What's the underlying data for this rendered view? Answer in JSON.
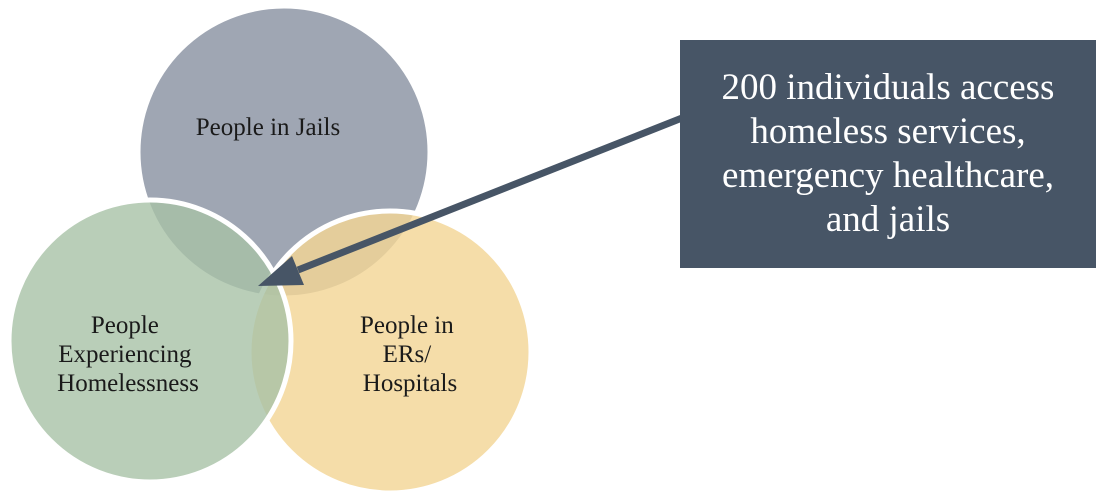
{
  "diagram": {
    "circles": [
      {
        "id": "jails",
        "label_lines": [
          "People in Jails"
        ],
        "color": "#8e97a6"
      },
      {
        "id": "homeless",
        "label_lines": [
          "People",
          "Experiencing",
          "Homelessness"
        ],
        "color": "#a7c2a6"
      },
      {
        "id": "hospitals",
        "label_lines": [
          "People in",
          "ERs/",
          "Hospitals"
        ],
        "color": "#f3d696"
      }
    ],
    "callout": {
      "text": "200 individuals access homeless services, emergency healthcare, and jails",
      "background": "#475566",
      "text_color": "#ffffff"
    },
    "arrow_color": "#475566",
    "circle_border_color": "#ffffff"
  }
}
